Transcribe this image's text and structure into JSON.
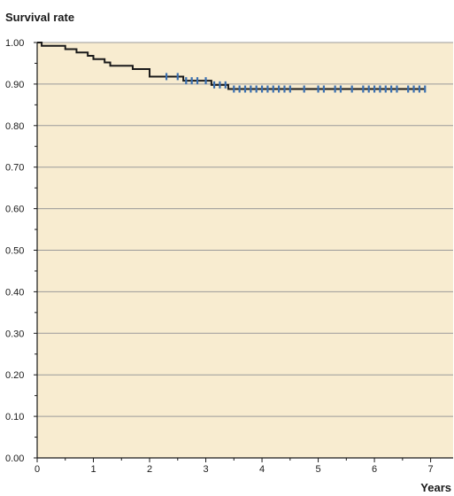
{
  "chart_data": {
    "type": "line",
    "title": "",
    "ylabel": "Survival rate",
    "xlabel": "Years",
    "xlim": [
      0,
      7.4
    ],
    "ylim": [
      0,
      1.0
    ],
    "x_ticks": [
      0,
      1,
      2,
      3,
      4,
      5,
      6,
      7
    ],
    "y_ticks": [
      0.0,
      0.1,
      0.2,
      0.3,
      0.4,
      0.5,
      0.6,
      0.7,
      0.8,
      0.9,
      1.0
    ],
    "x_tick_labels": [
      "0",
      "1",
      "2",
      "3",
      "4",
      "5",
      "6",
      "7"
    ],
    "y_tick_labels": [
      "0.00",
      "0.10",
      "0.20",
      "0.30",
      "0.40",
      "0.50",
      "0.60",
      "0.70",
      "0.80",
      "0.90",
      "1.00"
    ],
    "grid": "horizontal",
    "step": {
      "x": [
        0,
        0.08,
        0.5,
        0.7,
        0.9,
        1.0,
        1.2,
        1.3,
        1.7,
        2.0,
        2.5,
        2.6,
        3.1,
        3.4
      ],
      "y": [
        1.0,
        0.992,
        0.984,
        0.976,
        0.968,
        0.96,
        0.952,
        0.944,
        0.936,
        0.918,
        0.918,
        0.908,
        0.898,
        0.888
      ],
      "end_x": 6.9
    },
    "censored": [
      {
        "x": 2.3,
        "y": 0.918
      },
      {
        "x": 2.5,
        "y": 0.918
      },
      {
        "x": 2.65,
        "y": 0.908
      },
      {
        "x": 2.75,
        "y": 0.908
      },
      {
        "x": 2.85,
        "y": 0.908
      },
      {
        "x": 3.0,
        "y": 0.908
      },
      {
        "x": 3.15,
        "y": 0.898
      },
      {
        "x": 3.25,
        "y": 0.898
      },
      {
        "x": 3.35,
        "y": 0.898
      },
      {
        "x": 3.5,
        "y": 0.888
      },
      {
        "x": 3.6,
        "y": 0.888
      },
      {
        "x": 3.7,
        "y": 0.888
      },
      {
        "x": 3.8,
        "y": 0.888
      },
      {
        "x": 3.9,
        "y": 0.888
      },
      {
        "x": 4.0,
        "y": 0.888
      },
      {
        "x": 4.1,
        "y": 0.888
      },
      {
        "x": 4.2,
        "y": 0.888
      },
      {
        "x": 4.3,
        "y": 0.888
      },
      {
        "x": 4.4,
        "y": 0.888
      },
      {
        "x": 4.5,
        "y": 0.888
      },
      {
        "x": 4.75,
        "y": 0.888
      },
      {
        "x": 5.0,
        "y": 0.888
      },
      {
        "x": 5.1,
        "y": 0.888
      },
      {
        "x": 5.3,
        "y": 0.888
      },
      {
        "x": 5.4,
        "y": 0.888
      },
      {
        "x": 5.6,
        "y": 0.888
      },
      {
        "x": 5.8,
        "y": 0.888
      },
      {
        "x": 5.9,
        "y": 0.888
      },
      {
        "x": 6.0,
        "y": 0.888
      },
      {
        "x": 6.1,
        "y": 0.888
      },
      {
        "x": 6.2,
        "y": 0.888
      },
      {
        "x": 6.3,
        "y": 0.888
      },
      {
        "x": 6.4,
        "y": 0.888
      },
      {
        "x": 6.6,
        "y": 0.888
      },
      {
        "x": 6.7,
        "y": 0.888
      },
      {
        "x": 6.8,
        "y": 0.888
      },
      {
        "x": 6.9,
        "y": 0.888
      }
    ],
    "colors": {
      "plot_background": "#f8ecd0",
      "grid": "#9a9a9a",
      "step_line": "#1a1a1a",
      "censor_mark": "#3a6fb0",
      "axis": "#1a1a1a"
    }
  }
}
